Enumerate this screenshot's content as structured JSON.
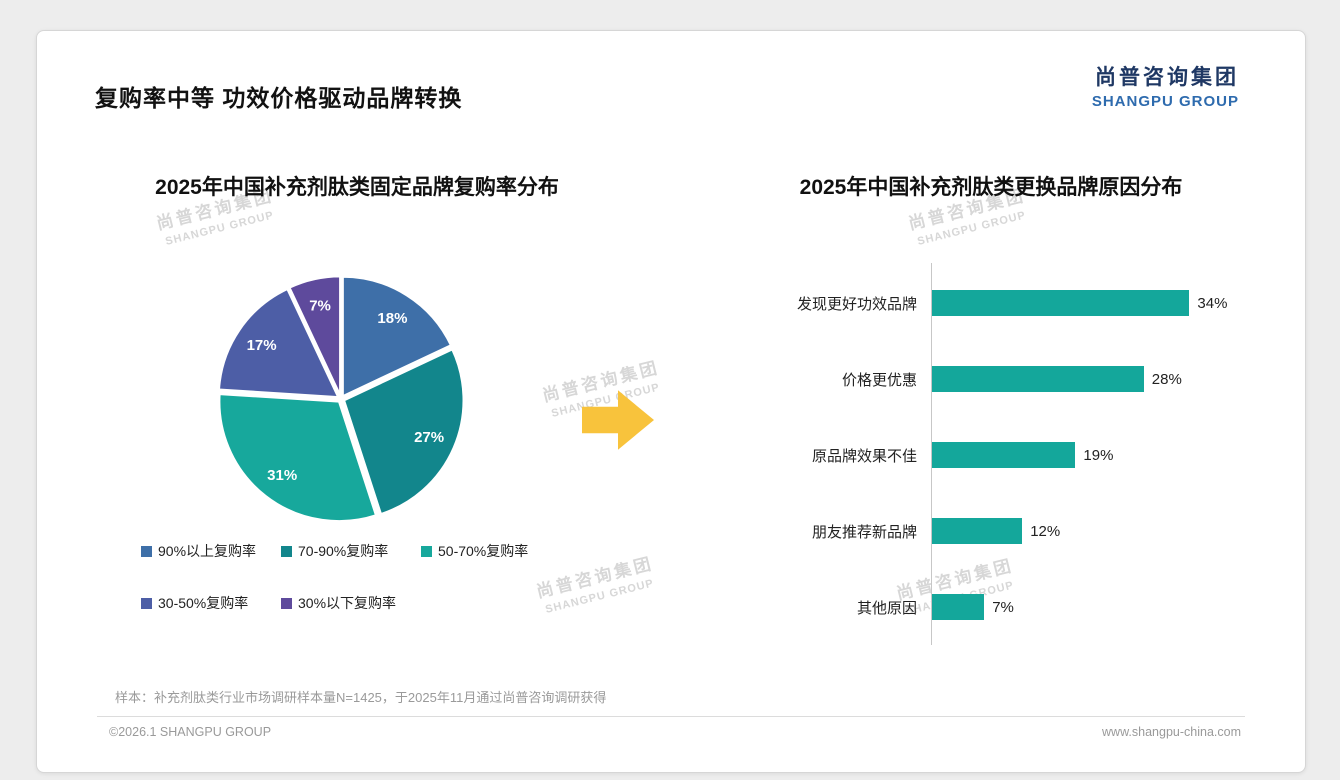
{
  "slide": {
    "title": "复购率中等 功效价格驱动品牌转换",
    "logo": {
      "cn": "尚普咨询集团",
      "en": "SHANGPU GROUP"
    },
    "watermark": {
      "cn": "尚普咨询集团",
      "en": "SHANGPU GROUP"
    },
    "sample_note": "样本：补充剂肽类行业市场调研样本量N=1425，于2025年11月通过尚普咨询调研获得",
    "copyright": "©2026.1 SHANGPU GROUP",
    "website": "www.shangpu-china.com",
    "arrow_color": "#f8c33c"
  },
  "chart_data": [
    {
      "type": "pie",
      "title": "2025年中国补充剂肽类固定品牌复购率分布",
      "labels": [
        "90%以上复购率",
        "70-90%复购率",
        "50-70%复购率",
        "30-50%复购率",
        "30%以下复购率"
      ],
      "values": [
        18,
        27,
        31,
        17,
        7
      ],
      "data_labels": [
        "18%",
        "27%",
        "31%",
        "17%",
        "7%"
      ],
      "colors": [
        "#3e6fa8",
        "#12868c",
        "#17a89c",
        "#4d5ea6",
        "#5e4a9c"
      ],
      "legend_position": "bottom"
    },
    {
      "type": "bar",
      "orientation": "horizontal",
      "title": "2025年中国补充剂肽类更换品牌原因分布",
      "categories": [
        "发现更好功效品牌",
        "价格更优惠",
        "原品牌效果不佳",
        "朋友推荐新品牌",
        "其他原因"
      ],
      "values": [
        34,
        28,
        19,
        12,
        7
      ],
      "data_labels": [
        "34%",
        "28%",
        "19%",
        "12%",
        "7%"
      ],
      "bar_color": "#14a79b",
      "xlim": [
        0,
        40
      ],
      "grid": false,
      "legend_position": "none"
    }
  ]
}
